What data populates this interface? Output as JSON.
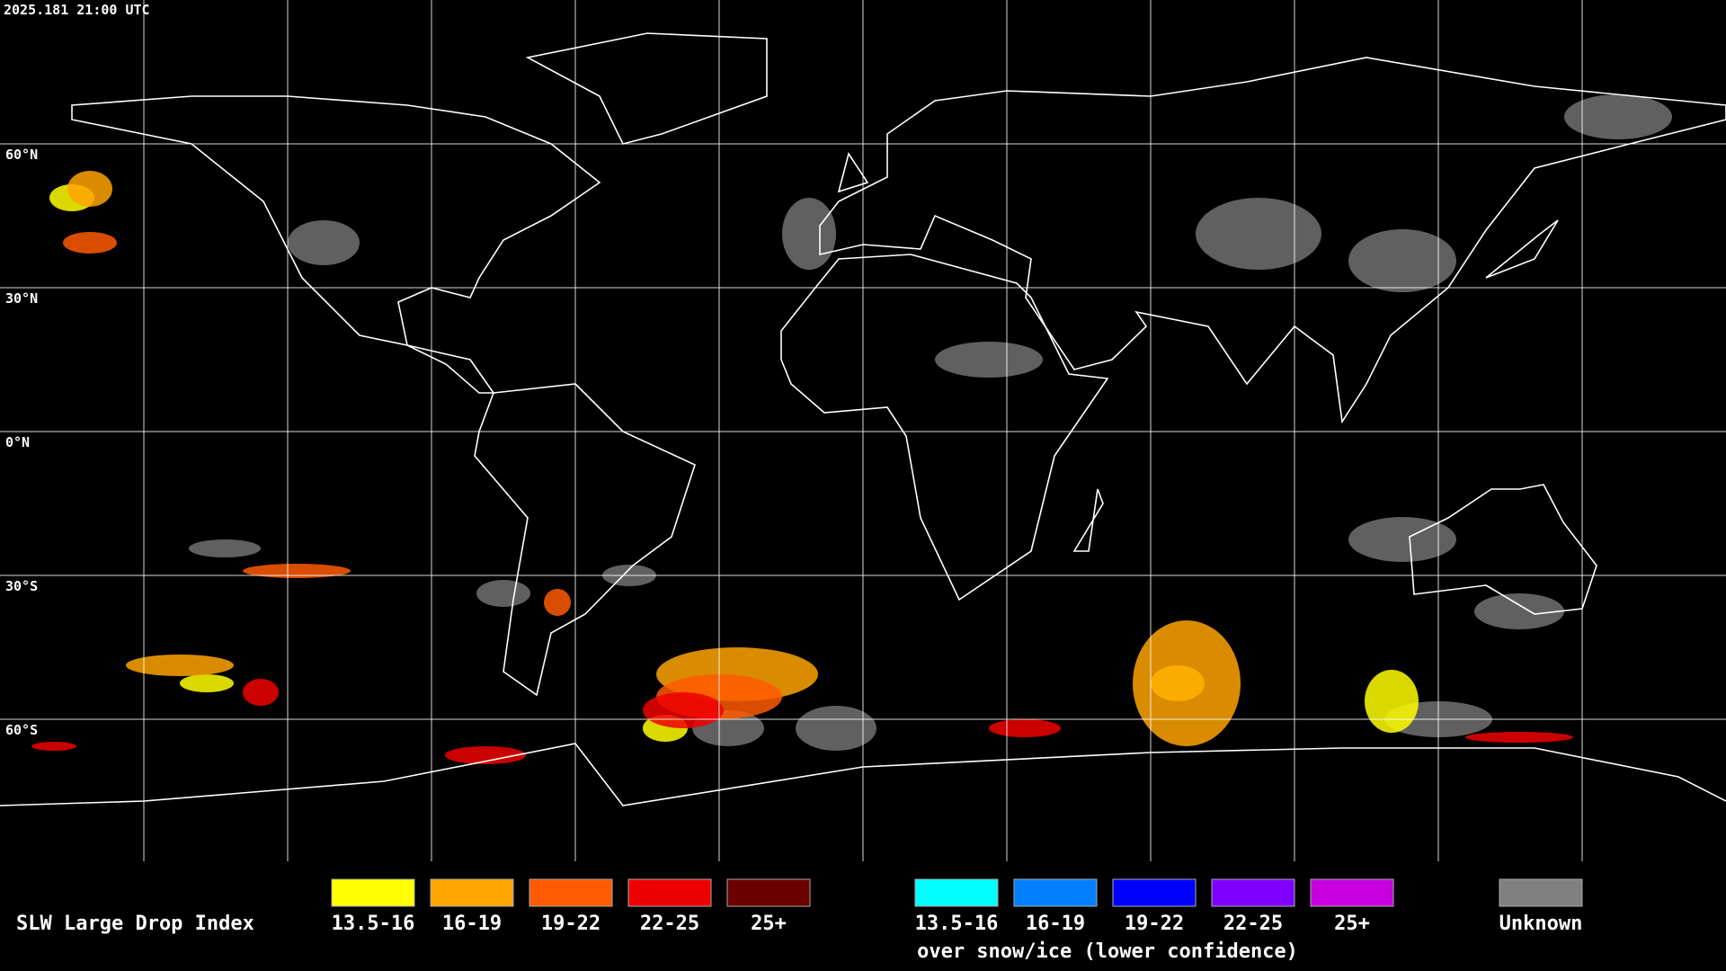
{
  "header": {
    "timestamp": "2025.181 21:00 UTC"
  },
  "map": {
    "latitude_labels": [
      "60°N",
      "30°N",
      "0°N",
      "30°S",
      "60°S"
    ]
  },
  "legend": {
    "title": "SLW Large Drop Index",
    "items": [
      {
        "label": "13.5-16",
        "color": "#ffff00"
      },
      {
        "label": "16-19",
        "color": "#ffa500"
      },
      {
        "label": "19-22",
        "color": "#ff5a00"
      },
      {
        "label": "22-25",
        "color": "#ee0000"
      },
      {
        "label": "25+",
        "color": "#6a0000"
      }
    ],
    "snow_ice_items": [
      {
        "label": "13.5-16",
        "color": "#00ffff"
      },
      {
        "label": "16-19",
        "color": "#0080ff"
      },
      {
        "label": "19-22",
        "color": "#0000ff"
      },
      {
        "label": "22-25",
        "color": "#8000ff"
      },
      {
        "label": "25+",
        "color": "#c800e0"
      }
    ],
    "snow_ice_note": "over snow/ice (lower confidence)",
    "unknown": {
      "label": "Unknown",
      "color": "#808080"
    }
  }
}
